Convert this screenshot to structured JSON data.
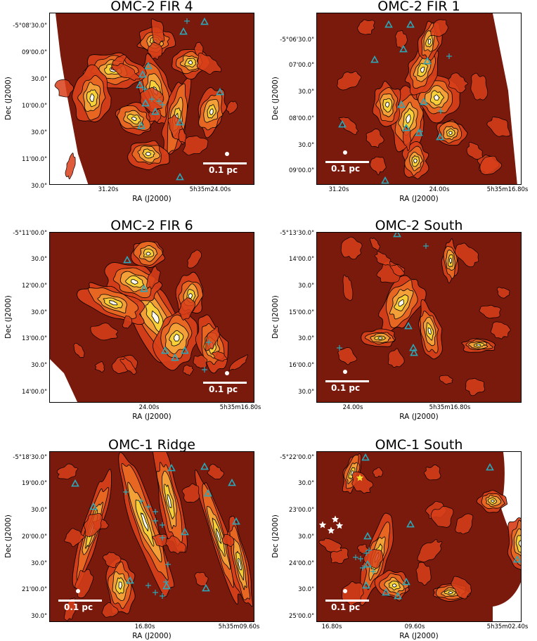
{
  "panels": [
    {
      "title": "OMC-2 FIR 4",
      "ylabel": "Dec (J2000)",
      "xlabel": "RA (J2000)",
      "yticks": [
        "-5°08'30.0\"",
        "09'00.0\"",
        "30.0\"",
        "10'00.0\"",
        "30.0\"",
        "11'00.0\"",
        "30.0\""
      ],
      "xticks": [
        "31.20s",
        "5h35m24.00s"
      ],
      "scalebar": "0.1 pc"
    },
    {
      "title": "OMC-2 FIR 1",
      "ylabel": "Dec (J2000)",
      "xlabel": "RA (J2000)",
      "yticks": [
        "-5°06'30.0\"",
        "07'00.0\"",
        "30.0\"",
        "08'00.0\"",
        "30.0\"",
        "09'00.0\""
      ],
      "xticks": [
        "31.20s",
        "24.00s",
        "5h35m16.80s"
      ],
      "scalebar": "0.1 pc"
    },
    {
      "title": "OMC-2 FIR 6",
      "ylabel": "Dec (J2000)",
      "xlabel": "RA (J2000)",
      "yticks": [
        "-5°11'00.0\"",
        "30.0\"",
        "12'00.0\"",
        "30.0\"",
        "13'00.0\"",
        "30.0\"",
        "14'00.0\""
      ],
      "xticks": [
        "24.00s",
        "5h35m16.80s"
      ],
      "scalebar": "0.1 pc"
    },
    {
      "title": "OMC-2 South",
      "ylabel": "Dec (J2000)",
      "xlabel": "RA (J2000)",
      "yticks": [
        "-5°13'30.0\"",
        "14'00.0\"",
        "30.0\"",
        "15'00.0\"",
        "30.0\"",
        "16'00.0\"",
        "30.0\""
      ],
      "xticks": [
        "24.00s",
        "5h35m16.80s"
      ],
      "scalebar": "0.1 pc"
    },
    {
      "title": "OMC-1 Ridge",
      "ylabel": "Dec (J2000)",
      "xlabel": "RA (J2000)",
      "yticks": [
        "-5°18'30.0\"",
        "19'00.0\"",
        "30.0\"",
        "20'00.0\"",
        "30.0\"",
        "21'00.0\"",
        "30.0\""
      ],
      "xticks": [
        "16.80s",
        "5h35m09.60s"
      ],
      "scalebar": "0.1 pc"
    },
    {
      "title": "OMC-1 South",
      "ylabel": "Dec (J2000)",
      "xlabel": "RA (J2000)",
      "yticks": [
        "-5°22'00.0\"",
        "30.0\"",
        "23'00.0\"",
        "30.0\"",
        "24'00.0\"",
        "30.0\"",
        "25'00.0\""
      ],
      "xticks": [
        "16.80s",
        "09.60s",
        "5h35m02.40s"
      ],
      "scalebar": "0.1 pc"
    }
  ],
  "colors": {
    "background_map": "#7a1a0c",
    "emission_mid": "#d8401a",
    "emission_high": "#f7d23a",
    "peak": "#ffffff",
    "protostar_triangle": "#2aa7b8",
    "marker_cross": "#2aa7b8",
    "star_white": "#ffffff",
    "star_yellow": "#f2e12e",
    "scalebar": "#ffffff"
  }
}
